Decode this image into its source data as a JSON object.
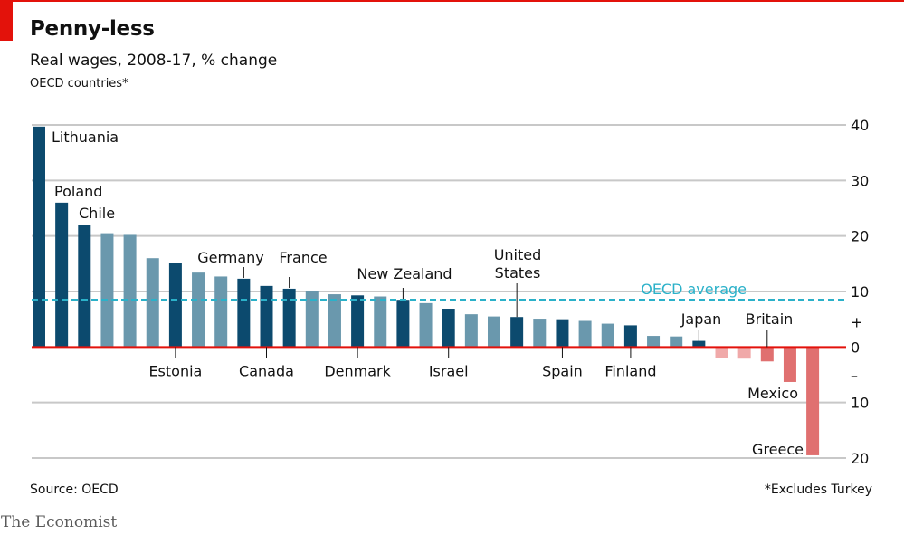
{
  "header": {
    "title": "Penny-less",
    "subtitle": "Real wages, 2008-17, % change",
    "note": "OECD countries*"
  },
  "footer": {
    "source": "Source: OECD",
    "footnote": "*Excludes Turkey",
    "brand": "The Economist"
  },
  "colors": {
    "accent_red": "#e3120b",
    "highlight_bar": "#0c4a6e",
    "other_bar": "#6a98ad",
    "negative_highlight": "#e07070",
    "negative_other": "#f0a9a9",
    "average_line": "#2bb1c9",
    "grid": "#c8c8c8"
  },
  "chart_data": {
    "type": "bar",
    "ylim": [
      -20,
      40
    ],
    "y_ticks": [
      {
        "value": 40,
        "label": "40"
      },
      {
        "value": 30,
        "label": "30"
      },
      {
        "value": 20,
        "label": "20"
      },
      {
        "value": 10,
        "label": "10"
      },
      {
        "value": 0,
        "label": "0"
      },
      {
        "value": -10,
        "label": "10"
      },
      {
        "value": -20,
        "label": "20"
      }
    ],
    "sign_labels": {
      "plus": "+",
      "minus": "–"
    },
    "average": {
      "label": "OECD average",
      "value": 8.5
    },
    "bars": [
      {
        "country": "Lithuania",
        "value": 39.7,
        "highlight": true
      },
      {
        "country": "Poland",
        "value": 26.0,
        "highlight": true
      },
      {
        "country": "Chile",
        "value": 22.0,
        "highlight": true
      },
      {
        "country": "",
        "value": 20.5,
        "highlight": false
      },
      {
        "country": "",
        "value": 20.2,
        "highlight": false
      },
      {
        "country": "",
        "value": 16.0,
        "highlight": false
      },
      {
        "country": "Estonia",
        "value": 15.2,
        "highlight": true
      },
      {
        "country": "",
        "value": 13.4,
        "highlight": false
      },
      {
        "country": "",
        "value": 12.7,
        "highlight": false
      },
      {
        "country": "Germany",
        "value": 12.3,
        "highlight": true
      },
      {
        "country": "Canada",
        "value": 11.0,
        "highlight": true
      },
      {
        "country": "France",
        "value": 10.5,
        "highlight": true
      },
      {
        "country": "",
        "value": 10.0,
        "highlight": false
      },
      {
        "country": "",
        "value": 9.5,
        "highlight": false
      },
      {
        "country": "Denmark",
        "value": 9.3,
        "highlight": true
      },
      {
        "country": "",
        "value": 9.1,
        "highlight": false
      },
      {
        "country": "New Zealand",
        "value": 8.5,
        "highlight": true
      },
      {
        "country": "",
        "value": 7.9,
        "highlight": false
      },
      {
        "country": "Israel",
        "value": 6.9,
        "highlight": true
      },
      {
        "country": "",
        "value": 5.9,
        "highlight": false
      },
      {
        "country": "",
        "value": 5.5,
        "highlight": false
      },
      {
        "country": "United States",
        "value": 5.4,
        "highlight": true
      },
      {
        "country": "",
        "value": 5.1,
        "highlight": false
      },
      {
        "country": "Spain",
        "value": 5.0,
        "highlight": true
      },
      {
        "country": "",
        "value": 4.7,
        "highlight": false
      },
      {
        "country": "",
        "value": 4.2,
        "highlight": false
      },
      {
        "country": "Finland",
        "value": 3.9,
        "highlight": true
      },
      {
        "country": "",
        "value": 2.0,
        "highlight": false
      },
      {
        "country": "",
        "value": 1.9,
        "highlight": false
      },
      {
        "country": "Japan",
        "value": 1.1,
        "highlight": true
      },
      {
        "country": "",
        "value": -2.0,
        "highlight": false
      },
      {
        "country": "",
        "value": -2.1,
        "highlight": false
      },
      {
        "country": "Britain",
        "value": -2.6,
        "highlight": true
      },
      {
        "country": "Mexico",
        "value": -6.3,
        "highlight": true
      },
      {
        "country": "Greece",
        "value": -19.5,
        "highlight": true
      }
    ]
  }
}
